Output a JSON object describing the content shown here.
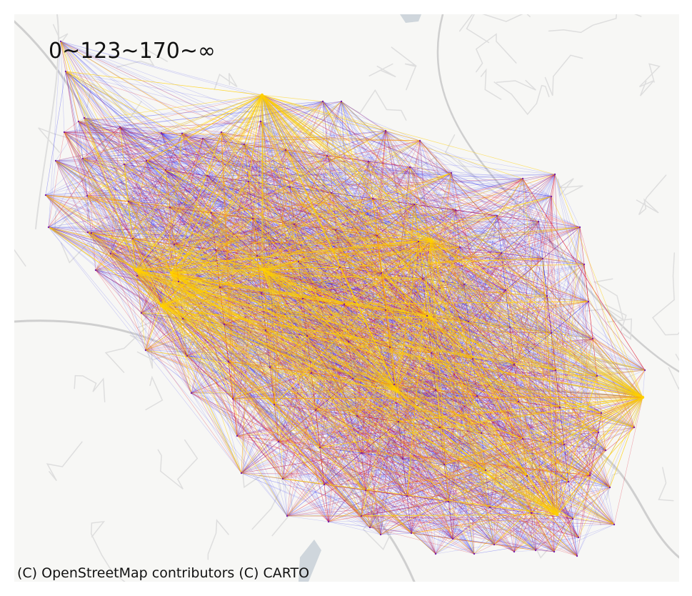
{
  "legend_label": "0~123~170~∞",
  "attribution": "(C) OpenStreetMap contributors (C) CARTO",
  "colors": {
    "background": "#f7f7f5",
    "road": "#dedede",
    "road_major": "#cfcfcf",
    "water": "#cfd6dc",
    "low": "#2b2bf0",
    "mid": "#e01830",
    "high": "#ffd000"
  },
  "flow_classes": [
    {
      "range": "0~123",
      "color": "#2b2bf0"
    },
    {
      "range": "123~170",
      "color": "#e01830"
    },
    {
      "range": "170~∞",
      "color": "#ffd000"
    }
  ]
}
